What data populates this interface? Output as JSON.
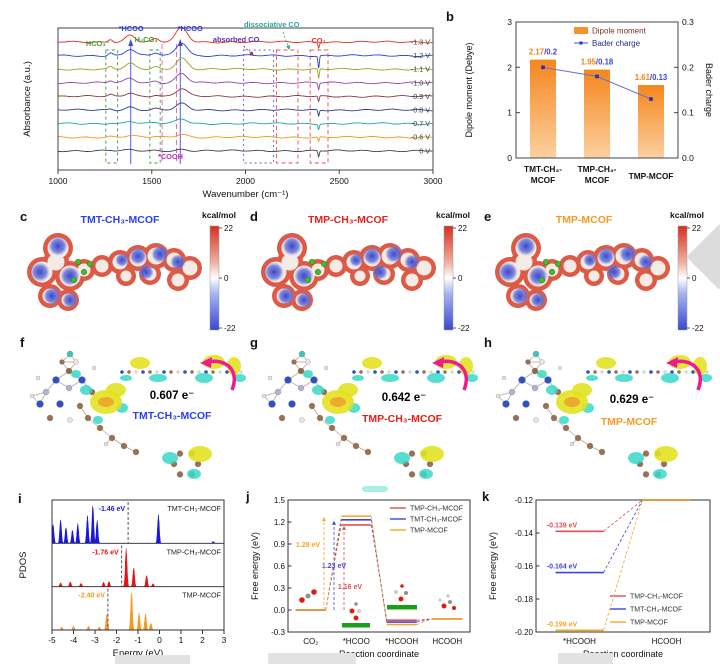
{
  "panels": {
    "b": {
      "letter": "b"
    },
    "c": {
      "letter": "c",
      "title": "TMT-CH₃-MCOF",
      "title_color": "#2b3ef0",
      "colorbar_label": "kcal/mol",
      "colorbar_ticks": [
        "22",
        "0",
        "-22"
      ]
    },
    "d": {
      "letter": "d",
      "title": "TMP-CH₃-MCOF",
      "title_color": "#e2231a",
      "colorbar_label": "kcal/mol",
      "colorbar_ticks": [
        "22",
        "0",
        "-22"
      ]
    },
    "e": {
      "letter": "e",
      "title": "TMP-MCOF",
      "title_color": "#f59a23",
      "colorbar_label": "kcal/mol",
      "colorbar_ticks": [
        "22",
        "0",
        "-22"
      ]
    },
    "f": {
      "letter": "f",
      "value": "0.607 e⁻",
      "name": "TMT-CH₃-MCOF",
      "name_color": "#2b3ef0"
    },
    "g": {
      "letter": "g",
      "value": "0.642 e⁻",
      "name": "TMP-CH₃-MCOF",
      "name_color": "#e2231a"
    },
    "h": {
      "letter": "h",
      "value": "0.629 e⁻",
      "name": "TMP-MCOF",
      "name_color": "#f59a23"
    },
    "i": {
      "letter": "i"
    },
    "j": {
      "letter": "j"
    },
    "k": {
      "letter": "k"
    }
  },
  "chart_data": [
    {
      "id": "a",
      "type": "line",
      "xlabel": "Wavenumber (cm⁻¹)",
      "ylabel": "Absorbance (a.u.)",
      "xlim": [
        1000,
        3000
      ],
      "xticks": [
        "1000",
        "1500",
        "2000",
        "2500",
        "3000"
      ],
      "traces": [
        {
          "label": "-1.3 V",
          "color": "#e13020",
          "amp": 1.0,
          "spike": 0.5
        },
        {
          "label": "-1.2 V",
          "color": "#2840d8",
          "amp": 0.9,
          "spike": 1.1
        },
        {
          "label": "-1.1 V",
          "color": "#9aa418",
          "amp": 0.78,
          "spike": 0.85
        },
        {
          "label": "-1.0 V",
          "color": "#9048b0",
          "amp": 0.66,
          "spike": 0.6
        },
        {
          "label": "-0.9 V",
          "color": "#8a3848",
          "amp": 0.54,
          "spike": 0.5
        },
        {
          "label": "-0.8 V",
          "color": "#323c80",
          "amp": 0.43,
          "spike": 0.55
        },
        {
          "label": "-0.7 V",
          "color": "#18a8a8",
          "amp": 0.33,
          "spike": 0.45
        },
        {
          "label": "-0.6 V",
          "color": "#f09820",
          "amp": 0.22,
          "spike": 0.4
        },
        {
          "label": "0 V",
          "color": "#404050",
          "amp": 0.1,
          "spike": 0.55
        }
      ],
      "peaks": [
        {
          "c": 1660,
          "w": 42,
          "a": 14.5
        },
        {
          "c": 1385,
          "w": 36,
          "a": 7
        },
        {
          "c": 1280,
          "w": 16,
          "a": 3.2
        },
        {
          "c": 1520,
          "w": 24,
          "a": 3
        }
      ],
      "spike_peak": {
        "c": 2390,
        "w": 5,
        "a": 11
      },
      "annotations": {
        "labels": [
          {
            "text": "*HCOO",
            "x": 1390,
            "y": 25,
            "color": "#2b3ed8"
          },
          {
            "text": "*HCOO",
            "x": 1705,
            "y": 25,
            "color": "#2b3ed8"
          },
          {
            "text": "HCO₃⁻",
            "x": 1212,
            "y": 40,
            "color": "#3aa02a"
          },
          {
            "text": "H₂CO₃",
            "x": 1470,
            "y": 36,
            "color": "#3aa02a"
          },
          {
            "text": "absorbed CO",
            "x": 1950,
            "y": 36,
            "color": "#5a2ea6"
          },
          {
            "text": "dissociative CO",
            "x": 2140,
            "y": 21,
            "color": "#2aa8a0"
          },
          {
            "text": "CO₂",
            "x": 2390,
            "y": 37,
            "color": "#e03127"
          },
          {
            "text": "*COOH",
            "x": 1600,
            "y": 153,
            "color": "#c030b8"
          }
        ],
        "vlines": [
          {
            "x": 1388,
            "color": "#4048d8",
            "dash": ""
          },
          {
            "x": 1652,
            "color": "#4048d8",
            "dash": ""
          },
          {
            "x": 1555,
            "color": "#e060b0",
            "dash": "5,3"
          },
          {
            "x": 1632,
            "color": "#e060b0",
            "dash": "5,3"
          }
        ],
        "boxes": [
          {
            "x1": 1255,
            "x2": 1318,
            "color": "#3aa02a",
            "dash": "3,3"
          },
          {
            "x1": 1490,
            "x2": 1545,
            "color": "#3aa02a",
            "dash": "3,3"
          },
          {
            "x1": 1990,
            "x2": 2150,
            "color": "#7a52c8",
            "dash": "2,3"
          },
          {
            "x1": 2165,
            "x2": 2280,
            "color": "#e05050",
            "dash": "4,3"
          },
          {
            "x1": 2345,
            "x2": 2440,
            "color": "#e05050",
            "dash": "4,3"
          }
        ]
      }
    },
    {
      "id": "b",
      "type": "bar",
      "ylabel_left": "Dipole moment (Debye)",
      "ylabel_right": "Bader charge",
      "ylim_left": [
        0,
        3
      ],
      "ylim_right": [
        0,
        0.3
      ],
      "yticks_left": [
        "0",
        "1",
        "2",
        "3"
      ],
      "yticks_right": [
        "0.0",
        "0.1",
        "0.2",
        "0.3"
      ],
      "categories": [
        [
          "TMT-CH₃-",
          "MCOF"
        ],
        [
          "TMP-CH₃-",
          "MCOF"
        ],
        [
          "TMP-MCOF"
        ]
      ],
      "dipole_values": [
        2.17,
        1.95,
        1.61
      ],
      "bader_values": [
        0.2,
        0.18,
        0.13
      ],
      "value_labels": [
        [
          "2.17",
          "/0.2"
        ],
        [
          "1.95",
          "/0.18"
        ],
        [
          "1.61",
          "/0.13"
        ]
      ],
      "legend": [
        {
          "label": "Dipole moment",
          "color": "#f5922e",
          "text_color": "#7a3424"
        },
        {
          "label": "Bader charge",
          "color": "#2830b0",
          "text_color": "#23307a"
        }
      ],
      "bar_gradient": [
        "#f5861e",
        "#fcd0a0"
      ],
      "line_color": "#6a70cc"
    },
    {
      "id": "i",
      "type": "area",
      "xlabel": "Energy (eV)",
      "ylabel": "PDOS",
      "xlim": [
        -5,
        3
      ],
      "xticks": [
        "-5",
        "-4",
        "-3",
        "-2",
        "-1",
        "0",
        "1",
        "2",
        "3"
      ],
      "series": [
        {
          "name": "TMT-CH₃-MCOF",
          "color": "#1616e0",
          "marker_label": "-1.46 eV",
          "marker_x": -1.46,
          "peaks": [
            [
              -4.95,
              0.5
            ],
            [
              -4.6,
              0.62
            ],
            [
              -4.35,
              0.42
            ],
            [
              -4.05,
              0.35
            ],
            [
              -3.8,
              0.52
            ],
            [
              -3.35,
              0.72
            ],
            [
              -3.1,
              1.0
            ],
            [
              -2.9,
              0.6
            ],
            [
              -0.05,
              0.75
            ],
            [
              2.5,
              0.05
            ]
          ]
        },
        {
          "name": "TMP-CH₃-MCOF",
          "color": "#e41414",
          "marker_label": "-1.76 eV",
          "marker_x": -1.76,
          "peaks": [
            [
              -4.6,
              0.1
            ],
            [
              -4.15,
              0.13
            ],
            [
              -3.65,
              0.09
            ],
            [
              -2.6,
              0.12
            ],
            [
              -2.35,
              0.14
            ],
            [
              -1.55,
              1.0
            ],
            [
              -1.2,
              0.5
            ],
            [
              -0.6,
              0.3
            ],
            [
              -0.3,
              0.08
            ]
          ]
        },
        {
          "name": "TMP-MCOF",
          "color": "#f59a1e",
          "marker_label": "-2.40 eV",
          "marker_x": -2.4,
          "peaks": [
            [
              -4.55,
              0.08
            ],
            [
              -4.0,
              0.1
            ],
            [
              -3.3,
              0.1
            ],
            [
              -2.8,
              0.08
            ],
            [
              -2.45,
              0.42
            ],
            [
              -1.3,
              1.0
            ],
            [
              -0.95,
              0.45
            ],
            [
              -0.65,
              0.42
            ],
            [
              -0.4,
              0.18
            ]
          ]
        }
      ]
    },
    {
      "id": "j",
      "type": "step",
      "xlabel": "Reaction coordinate",
      "ylabel": "Free energy (eV)",
      "ylim": [
        -0.3,
        1.5
      ],
      "yticks": [
        "1.5",
        "1.2",
        "0.9",
        "0.6",
        "0.3",
        "0.0",
        "-0.3"
      ],
      "categories": [
        "CO₂",
        "*HCOO",
        "*HCOOH",
        "HCOOH"
      ],
      "series": [
        {
          "name": "TMP-CH₃-MCOF",
          "color": "#e05050",
          "values": [
            0,
            1.16,
            -0.139,
            -0.12
          ],
          "barrier_label": "1.16 eV"
        },
        {
          "name": "TMT-CH₃-MCOF",
          "color": "#3c46dc",
          "values": [
            0,
            1.23,
            -0.164,
            -0.12
          ],
          "barrier_label": "1.23 eV"
        },
        {
          "name": "TMP-MCOF",
          "color": "#f5a623",
          "values": [
            0,
            1.28,
            -0.199,
            -0.12
          ],
          "barrier_label": "1.28 eV"
        }
      ]
    },
    {
      "id": "k",
      "type": "step",
      "xlabel": "Reaction coordinate",
      "ylabel": "Free energy (eV)",
      "ylim": [
        -0.2,
        -0.12
      ],
      "yticks": [
        "-0.12",
        "-0.14",
        "-0.16",
        "-0.18",
        "-0.20"
      ],
      "categories": [
        "*HCOOH",
        "HCOOH"
      ],
      "series": [
        {
          "name": "TMP-CH₃-MCOF",
          "color": "#e05050",
          "values": [
            -0.139,
            -0.12
          ],
          "value_label": "-0.139 eV"
        },
        {
          "name": "TMT-CH₃-MCOF",
          "color": "#3c46dc",
          "values": [
            -0.164,
            -0.12
          ],
          "value_label": "-0.164 eV"
        },
        {
          "name": "TMP-MCOF",
          "color": "#f5a623",
          "values": [
            -0.199,
            -0.12
          ],
          "value_label": "-0.199 eV"
        }
      ]
    }
  ]
}
